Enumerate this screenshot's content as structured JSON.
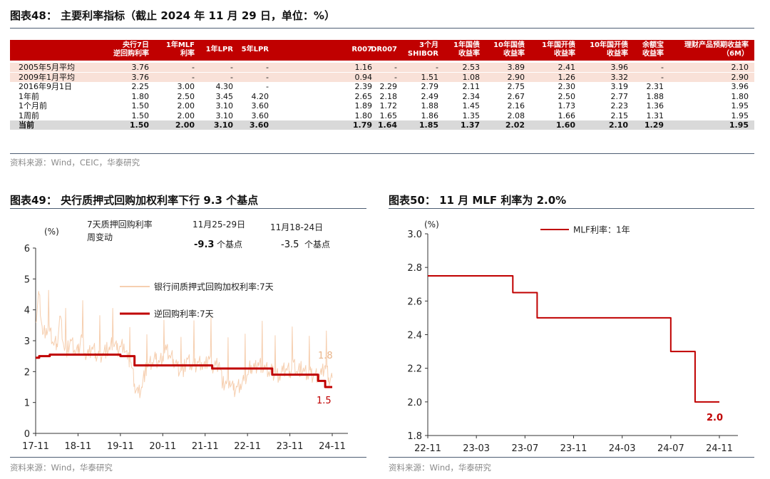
{
  "fig48": {
    "title": "图表48：  主要利率指标（截止 2024 年 11 月 29 日，单位：%）",
    "source": "资料来源：Wind，CEIC，华泰研究",
    "columns": [
      {
        "line1": "央行7日",
        "line2": "逆回购利率"
      },
      {
        "line1": "1年MLF",
        "line2": "利率"
      },
      {
        "line1": "1年LPR",
        "line2": ""
      },
      {
        "line1": "5年LPR",
        "line2": ""
      },
      {
        "line1": "R007",
        "line2": ""
      },
      {
        "line1": "DR007",
        "line2": ""
      },
      {
        "line1": "3个月",
        "line2": "SHIBOR"
      },
      {
        "line1": "1年国债",
        "line2": "收益率"
      },
      {
        "line1": "10年国债",
        "line2": "收益率"
      },
      {
        "line1": "1年国开债",
        "line2": "收益率"
      },
      {
        "line1": "10年国开债",
        "line2": "收益率"
      },
      {
        "line1": "余额宝",
        "line2": "收益率"
      },
      {
        "line1": "理财产品预期收益率",
        "line2": "（6M）"
      }
    ],
    "rows": [
      {
        "label": "2005年5月平均",
        "style": "pink",
        "values": [
          "3.76",
          "-",
          "-",
          "-",
          "1.16",
          "-",
          "-",
          "2.53",
          "3.89",
          "2.41",
          "3.96",
          "-",
          "2.10"
        ]
      },
      {
        "label": "2009年1月平均",
        "style": "pink",
        "values": [
          "3.76",
          "-",
          "-",
          "-",
          "0.94",
          "-",
          "1.51",
          "1.08",
          "2.90",
          "1.26",
          "3.32",
          "-",
          "2.90"
        ]
      },
      {
        "label": "2016年9月1日",
        "style": "",
        "values": [
          "2.25",
          "3.00",
          "4.30",
          "-",
          "2.39",
          "2.29",
          "2.79",
          "2.11",
          "2.75",
          "2.30",
          "3.19",
          "2.31",
          "3.96"
        ]
      },
      {
        "label": "1年前",
        "style": "",
        "values": [
          "1.80",
          "2.50",
          "3.45",
          "4.20",
          "2.65",
          "2.18",
          "2.49",
          "2.34",
          "2.67",
          "2.50",
          "2.77",
          "1.88",
          "1.80"
        ]
      },
      {
        "label": "1个月前",
        "style": "",
        "values": [
          "1.50",
          "2.00",
          "3.10",
          "3.60",
          "1.89",
          "1.72",
          "1.88",
          "1.45",
          "2.16",
          "1.73",
          "2.23",
          "1.36",
          "1.95"
        ]
      },
      {
        "label": "1周前",
        "style": "",
        "values": [
          "1.50",
          "2.00",
          "3.10",
          "3.60",
          "1.80",
          "1.65",
          "1.86",
          "1.35",
          "2.08",
          "1.66",
          "2.15",
          "1.31",
          "1.95"
        ]
      },
      {
        "label": "当前",
        "style": "grey",
        "values": [
          "1.50",
          "2.00",
          "3.10",
          "3.60",
          "1.79",
          "1.64",
          "1.85",
          "1.37",
          "2.02",
          "1.60",
          "2.10",
          "1.29",
          "1.95"
        ]
      }
    ]
  },
  "fig49": {
    "title": "图表49：  央行质押式回购加权利率下行 9.3 个基点",
    "unit": "(%)",
    "note_title_line1": "7天质押回购利率",
    "note_title_line2": "周变动",
    "week1_range": "11月25-29日",
    "week1_value": "-9.3",
    "week1_unit": "个基点",
    "week2_range": "11月18-24日",
    "week2_value": "-3.5",
    "week2_unit": "个基点",
    "source": "资料来源：Wind，华泰研究",
    "colors": {
      "repo": "#f6cfb0",
      "reverse_repo": "#c00000",
      "end_label_repo": "#e8b48a"
    }
  },
  "fig50": {
    "title": "图表50：  11 月 MLF 利率为 2.0%",
    "unit": "(%)",
    "source": "资料来源：Wind，华泰研究",
    "colors": {
      "mlf": "#c00000"
    }
  },
  "chart_data": [
    {
      "type": "line",
      "title": "",
      "ylabel": "(%)",
      "ylim": [
        0,
        6
      ],
      "yticks": [
        0,
        1,
        2,
        3,
        4,
        5,
        6
      ],
      "xticks": [
        "17-11",
        "18-11",
        "19-11",
        "20-11",
        "21-11",
        "22-11",
        "23-11",
        "24-11"
      ],
      "grid": false,
      "legend": "top-center",
      "series": [
        {
          "name": "银行间质押式回购加权利率:7天",
          "x": [
            "2017-11",
            "2017-12",
            "2018-01",
            "2018-02",
            "2018-03",
            "2018-04",
            "2018-05",
            "2018-06",
            "2018-07",
            "2018-08",
            "2018-09",
            "2018-10",
            "2018-11",
            "2018-12",
            "2019-01",
            "2019-02",
            "2019-03",
            "2019-04",
            "2019-05",
            "2019-06",
            "2019-07",
            "2019-08",
            "2019-09",
            "2019-10",
            "2019-11",
            "2019-12",
            "2020-01",
            "2020-02",
            "2020-03",
            "2020-04",
            "2020-05",
            "2020-06",
            "2020-07",
            "2020-08",
            "2020-09",
            "2020-10",
            "2020-11",
            "2020-12",
            "2021-01",
            "2021-02",
            "2021-03",
            "2021-04",
            "2021-05",
            "2021-06",
            "2021-07",
            "2021-08",
            "2021-09",
            "2021-10",
            "2021-11",
            "2021-12",
            "2022-01",
            "2022-02",
            "2022-03",
            "2022-04",
            "2022-05",
            "2022-06",
            "2022-07",
            "2022-08",
            "2022-09",
            "2022-10",
            "2022-11",
            "2022-12",
            "2023-01",
            "2023-02",
            "2023-03",
            "2023-04",
            "2023-05",
            "2023-06",
            "2023-07",
            "2023-08",
            "2023-09",
            "2023-10",
            "2023-11",
            "2023-12",
            "2024-01",
            "2024-02",
            "2024-03",
            "2024-04",
            "2024-05",
            "2024-06",
            "2024-07",
            "2024-08",
            "2024-09",
            "2024-10",
            "2024-11"
          ],
          "values": [
            3.6,
            4.5,
            3.2,
            3.4,
            3.3,
            2.9,
            2.9,
            3.8,
            2.8,
            2.7,
            3.0,
            2.7,
            2.6,
            3.2,
            2.6,
            2.5,
            2.8,
            2.6,
            2.5,
            2.6,
            2.7,
            2.7,
            3.0,
            2.7,
            2.8,
            2.9,
            2.4,
            2.3,
            1.6,
            1.3,
            1.5,
            2.0,
            2.2,
            2.3,
            2.4,
            2.3,
            2.5,
            2.7,
            2.5,
            2.4,
            2.2,
            2.0,
            2.1,
            2.4,
            2.2,
            2.2,
            2.3,
            2.3,
            2.1,
            2.5,
            2.2,
            2.2,
            2.3,
            1.6,
            1.6,
            1.7,
            1.4,
            1.5,
            1.6,
            1.7,
            1.9,
            2.2,
            2.1,
            2.3,
            2.2,
            2.1,
            2.0,
            2.0,
            1.9,
            1.9,
            2.0,
            2.1,
            2.0,
            2.3,
            2.0,
            2.1,
            2.0,
            1.9,
            1.9,
            1.9,
            1.9,
            1.9,
            2.2,
            1.8,
            1.8
          ]
        },
        {
          "name": "逆回购利率:7天",
          "x": [
            "2017-11",
            "2017-12",
            "2018-03",
            "2019-11",
            "2020-03",
            "2022-01",
            "2023-06",
            "2024-07",
            "2024-09",
            "2024-11"
          ],
          "values": [
            2.45,
            2.5,
            2.55,
            2.5,
            2.2,
            2.1,
            1.9,
            1.7,
            1.5,
            1.5
          ]
        }
      ],
      "annotations": [
        "1.8",
        "1.5"
      ]
    },
    {
      "type": "line",
      "title": "",
      "ylabel": "(%)",
      "ylim": [
        1.8,
        3.0
      ],
      "yticks": [
        1.8,
        2.0,
        2.2,
        2.4,
        2.6,
        2.8,
        3.0
      ],
      "xticks": [
        "22-11",
        "23-03",
        "23-07",
        "23-11",
        "24-03",
        "24-07",
        "24-11"
      ],
      "grid": false,
      "legend": "top-center",
      "series": [
        {
          "name": "MLF利率：1年",
          "x": [
            "2022-11",
            "2023-05",
            "2023-06",
            "2023-07",
            "2023-08",
            "2024-06",
            "2024-07",
            "2024-08",
            "2024-09",
            "2024-11"
          ],
          "values": [
            2.75,
            2.75,
            2.65,
            2.65,
            2.5,
            2.5,
            2.3,
            2.3,
            2.0,
            2.0
          ]
        }
      ],
      "annotations": [
        "2.0"
      ]
    }
  ]
}
